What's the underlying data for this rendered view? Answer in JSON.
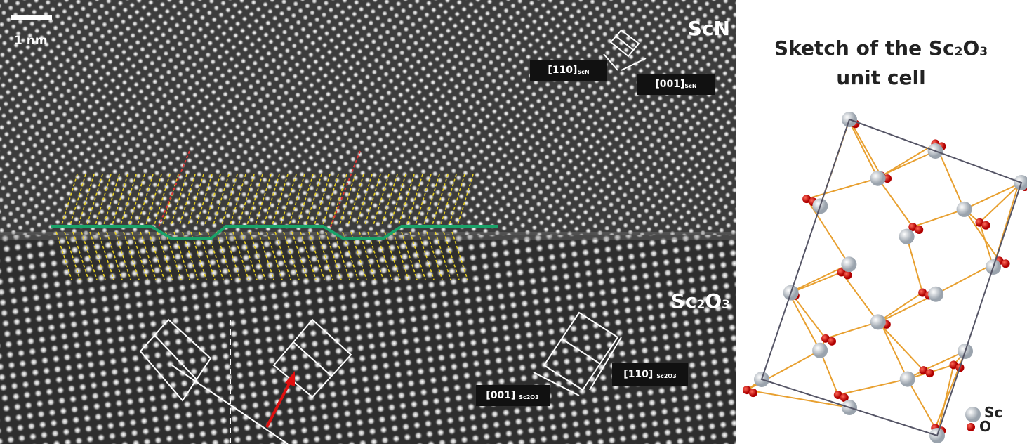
{
  "image": {
    "scale_bar": "1 nm",
    "top_phase": [
      {
        "text": "ScN"
      }
    ],
    "bottom_phase": [
      {
        "text": "Sc"
      },
      {
        "text": "2",
        "sub": true
      },
      {
        "text": "O"
      },
      {
        "text": "3",
        "sub": true
      }
    ],
    "directions": [
      [
        {
          "text": "[110]"
        },
        {
          "text": "ScN",
          "sub": true
        }
      ],
      [
        {
          "text": "[001]"
        },
        {
          "text": "ScN",
          "sub": true
        }
      ],
      [
        {
          "text": "[001] "
        },
        {
          "text": "Sc",
          "sub": true
        },
        {
          "text": "2",
          "sub": true
        },
        {
          "text": "O",
          "sub": true
        },
        {
          "text": "3",
          "sub": true
        }
      ],
      [
        {
          "text": "[110] "
        },
        {
          "text": "Sc",
          "sub": true
        },
        {
          "text": "2",
          "sub": true
        },
        {
          "text": "O",
          "sub": true
        },
        {
          "text": "3",
          "sub": true
        }
      ]
    ]
  },
  "sketch": {
    "title_line1": [
      {
        "text": "Sketch of the Sc"
      },
      {
        "text": "2",
        "sub": true
      },
      {
        "text": "O"
      },
      {
        "text": "3",
        "sub": true
      }
    ],
    "title_line2": [
      {
        "text": "unit cell"
      }
    ],
    "legend": [
      [
        {
          "text": "Sc"
        }
      ],
      [
        {
          "text": "O"
        }
      ]
    ]
  }
}
